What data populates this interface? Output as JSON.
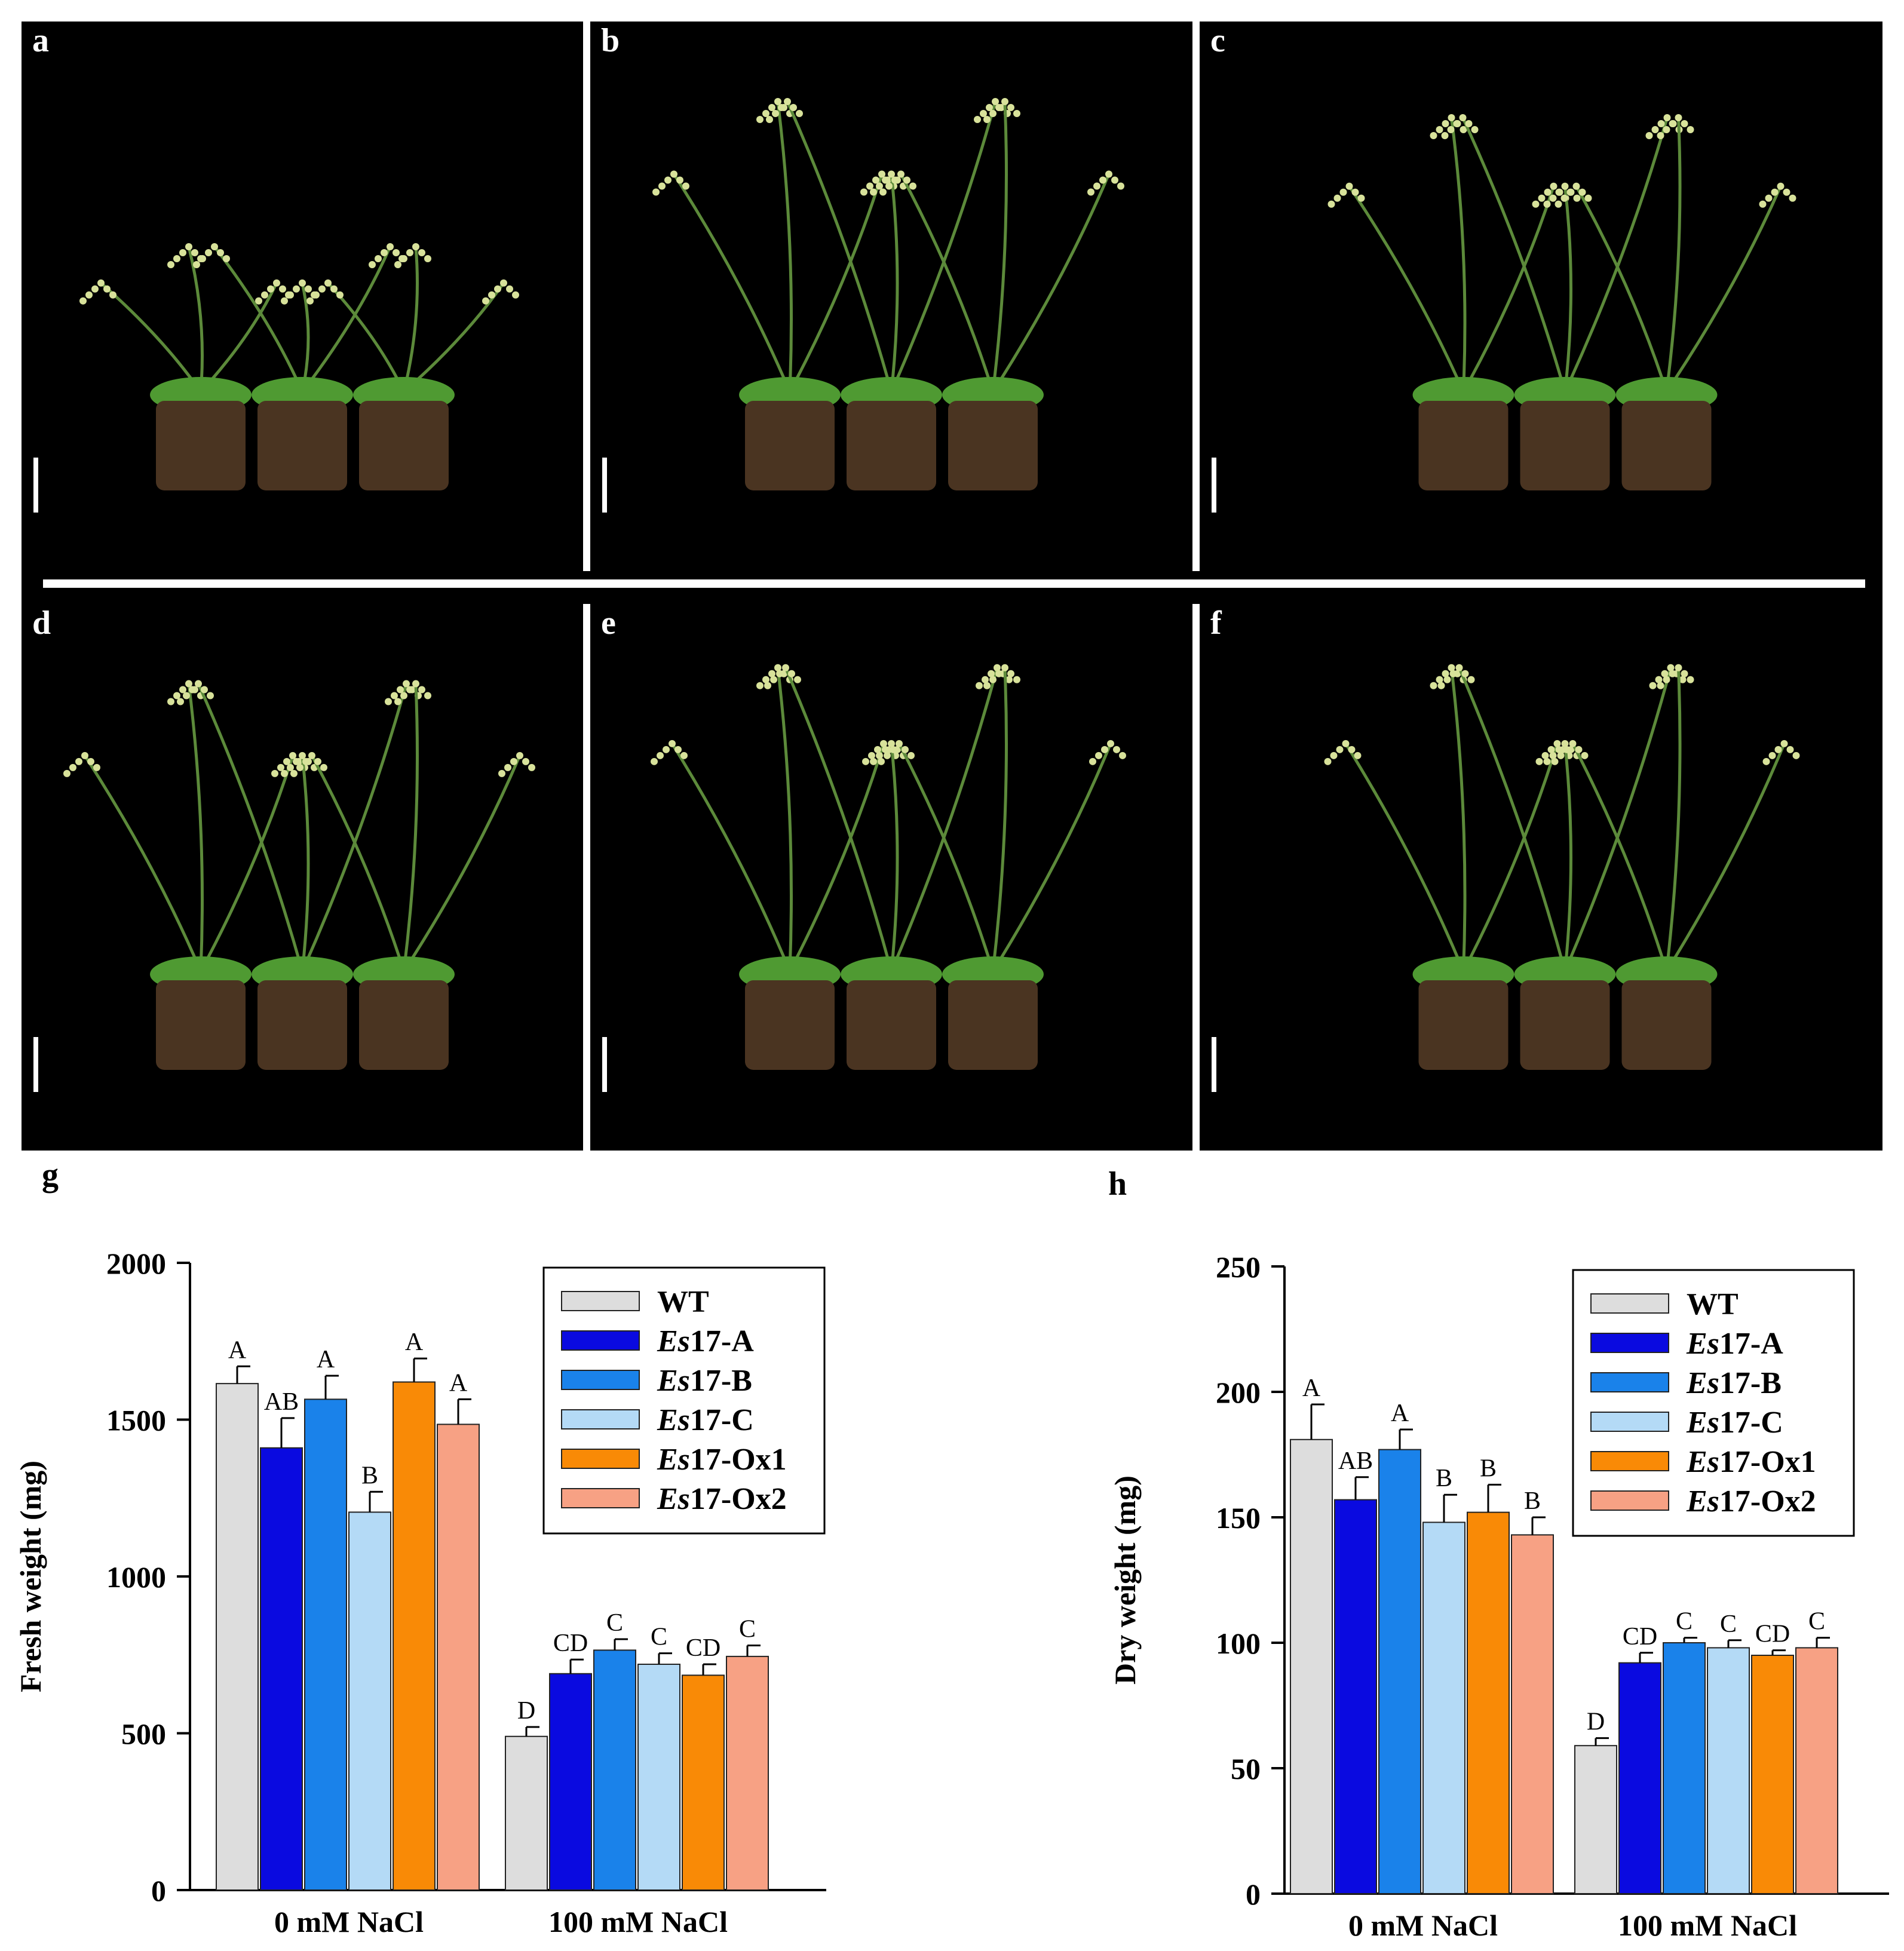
{
  "photos": {
    "panels": [
      {
        "letter": "a",
        "plant_count": 3,
        "growth": 0.45
      },
      {
        "letter": "b",
        "plant_count": 3,
        "growth": 0.9
      },
      {
        "letter": "c",
        "plant_count": 3,
        "growth": 0.85
      },
      {
        "letter": "d",
        "plant_count": 3,
        "growth": 0.9
      },
      {
        "letter": "e",
        "plant_count": 3,
        "growth": 0.95
      },
      {
        "letter": "f",
        "plant_count": 3,
        "growth": 0.95
      }
    ],
    "colors": {
      "background": "#000000",
      "separator": "#ffffff",
      "stem": "#5c8a3a",
      "leaf": "#4f9a32",
      "soil": "#4a3421",
      "flower": "#d8e29a"
    }
  },
  "chart_data": [
    {
      "panel": "g",
      "type": "bar",
      "ylabel": "Fresh weight (mg)",
      "xlabel": "",
      "ylim": [
        0,
        2000
      ],
      "yticks": [
        0,
        500,
        1000,
        1500,
        2000
      ],
      "categories": [
        "0 mM NaCl",
        "100 mM NaCl"
      ],
      "series": [
        {
          "name": "WT",
          "color": "#dddddd",
          "values": [
            1615,
            490
          ],
          "errors": [
            55,
            30
          ],
          "letters": [
            "A",
            "D"
          ]
        },
        {
          "name": "Es17-A",
          "color": "#0a0ae0",
          "values": [
            1410,
            690
          ],
          "errors": [
            95,
            45
          ],
          "letters": [
            "AB",
            "CD"
          ]
        },
        {
          "name": "Es17-B",
          "color": "#1a82ea",
          "values": [
            1565,
            765
          ],
          "errors": [
            75,
            35
          ],
          "letters": [
            "A",
            "C"
          ]
        },
        {
          "name": "Es17-C",
          "color": "#b4daf6",
          "values": [
            1205,
            720
          ],
          "errors": [
            65,
            35
          ],
          "letters": [
            "B",
            "C"
          ]
        },
        {
          "name": "Es17-Ox1",
          "color": "#f98a06",
          "values": [
            1620,
            685
          ],
          "errors": [
            75,
            35
          ],
          "letters": [
            "A",
            "CD"
          ]
        },
        {
          "name": "Es17-Ox2",
          "color": "#f7a184",
          "values": [
            1485,
            745
          ],
          "errors": [
            80,
            35
          ],
          "letters": [
            "A",
            "C"
          ]
        }
      ],
      "legend": "top-right"
    },
    {
      "panel": "h",
      "type": "bar",
      "ylabel": "Dry weight (mg)",
      "xlabel": "",
      "ylim": [
        0,
        250
      ],
      "yticks": [
        0,
        50,
        100,
        150,
        200,
        250
      ],
      "categories": [
        "0 mM NaCl",
        "100 mM NaCl"
      ],
      "series": [
        {
          "name": "WT",
          "color": "#dddddd",
          "values": [
            181,
            59
          ],
          "errors": [
            14,
            3
          ],
          "letters": [
            "A",
            "D"
          ]
        },
        {
          "name": "Es17-A",
          "color": "#0a0ae0",
          "values": [
            157,
            92
          ],
          "errors": [
            9,
            4
          ],
          "letters": [
            "AB",
            "CD"
          ]
        },
        {
          "name": "Es17-B",
          "color": "#1a82ea",
          "values": [
            177,
            100
          ],
          "errors": [
            8,
            2
          ],
          "letters": [
            "A",
            "C"
          ]
        },
        {
          "name": "Es17-C",
          "color": "#b4daf6",
          "values": [
            148,
            98
          ],
          "errors": [
            11,
            3
          ],
          "letters": [
            "B",
            "C"
          ]
        },
        {
          "name": "Es17-Ox1",
          "color": "#f98a06",
          "values": [
            152,
            95
          ],
          "errors": [
            11,
            2
          ],
          "letters": [
            "B",
            "CD"
          ]
        },
        {
          "name": "Es17-Ox2",
          "color": "#f7a184",
          "values": [
            143,
            98
          ],
          "errors": [
            7,
            4
          ],
          "letters": [
            "B",
            "C"
          ]
        }
      ],
      "legend": "top-right"
    }
  ]
}
